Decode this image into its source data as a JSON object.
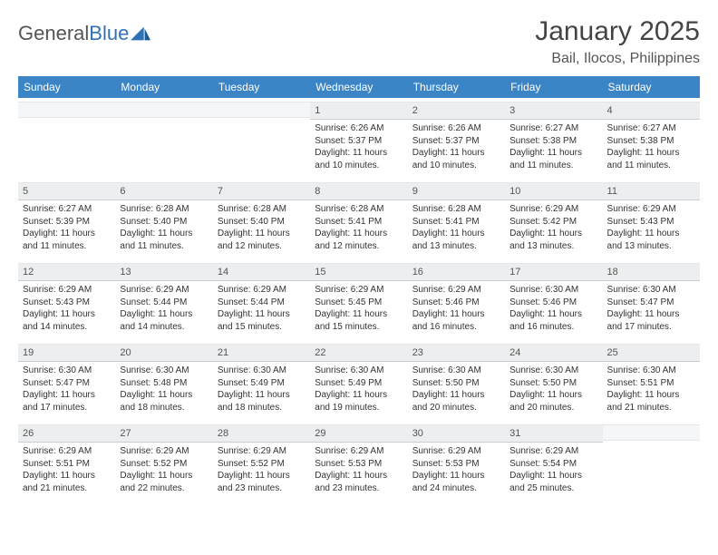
{
  "logo": {
    "text1": "General",
    "text2": "Blue"
  },
  "title": "January 2025",
  "subtitle": "Bail, Ilocos, Philippines",
  "colors": {
    "header_bg": "#3b85c6",
    "header_text": "#ffffff",
    "daynum_bg": "#eceeef",
    "body_text": "#333333",
    "logo_gray": "#555555",
    "logo_blue": "#2f72b8"
  },
  "day_headers": [
    "Sunday",
    "Monday",
    "Tuesday",
    "Wednesday",
    "Thursday",
    "Friday",
    "Saturday"
  ],
  "weeks": [
    [
      {
        "n": "",
        "sr": "",
        "ss": "",
        "dl1": "",
        "dl2": ""
      },
      {
        "n": "",
        "sr": "",
        "ss": "",
        "dl1": "",
        "dl2": ""
      },
      {
        "n": "",
        "sr": "",
        "ss": "",
        "dl1": "",
        "dl2": ""
      },
      {
        "n": "1",
        "sr": "Sunrise: 6:26 AM",
        "ss": "Sunset: 5:37 PM",
        "dl1": "Daylight: 11 hours",
        "dl2": "and 10 minutes."
      },
      {
        "n": "2",
        "sr": "Sunrise: 6:26 AM",
        "ss": "Sunset: 5:37 PM",
        "dl1": "Daylight: 11 hours",
        "dl2": "and 10 minutes."
      },
      {
        "n": "3",
        "sr": "Sunrise: 6:27 AM",
        "ss": "Sunset: 5:38 PM",
        "dl1": "Daylight: 11 hours",
        "dl2": "and 11 minutes."
      },
      {
        "n": "4",
        "sr": "Sunrise: 6:27 AM",
        "ss": "Sunset: 5:38 PM",
        "dl1": "Daylight: 11 hours",
        "dl2": "and 11 minutes."
      }
    ],
    [
      {
        "n": "5",
        "sr": "Sunrise: 6:27 AM",
        "ss": "Sunset: 5:39 PM",
        "dl1": "Daylight: 11 hours",
        "dl2": "and 11 minutes."
      },
      {
        "n": "6",
        "sr": "Sunrise: 6:28 AM",
        "ss": "Sunset: 5:40 PM",
        "dl1": "Daylight: 11 hours",
        "dl2": "and 11 minutes."
      },
      {
        "n": "7",
        "sr": "Sunrise: 6:28 AM",
        "ss": "Sunset: 5:40 PM",
        "dl1": "Daylight: 11 hours",
        "dl2": "and 12 minutes."
      },
      {
        "n": "8",
        "sr": "Sunrise: 6:28 AM",
        "ss": "Sunset: 5:41 PM",
        "dl1": "Daylight: 11 hours",
        "dl2": "and 12 minutes."
      },
      {
        "n": "9",
        "sr": "Sunrise: 6:28 AM",
        "ss": "Sunset: 5:41 PM",
        "dl1": "Daylight: 11 hours",
        "dl2": "and 13 minutes."
      },
      {
        "n": "10",
        "sr": "Sunrise: 6:29 AM",
        "ss": "Sunset: 5:42 PM",
        "dl1": "Daylight: 11 hours",
        "dl2": "and 13 minutes."
      },
      {
        "n": "11",
        "sr": "Sunrise: 6:29 AM",
        "ss": "Sunset: 5:43 PM",
        "dl1": "Daylight: 11 hours",
        "dl2": "and 13 minutes."
      }
    ],
    [
      {
        "n": "12",
        "sr": "Sunrise: 6:29 AM",
        "ss": "Sunset: 5:43 PM",
        "dl1": "Daylight: 11 hours",
        "dl2": "and 14 minutes."
      },
      {
        "n": "13",
        "sr": "Sunrise: 6:29 AM",
        "ss": "Sunset: 5:44 PM",
        "dl1": "Daylight: 11 hours",
        "dl2": "and 14 minutes."
      },
      {
        "n": "14",
        "sr": "Sunrise: 6:29 AM",
        "ss": "Sunset: 5:44 PM",
        "dl1": "Daylight: 11 hours",
        "dl2": "and 15 minutes."
      },
      {
        "n": "15",
        "sr": "Sunrise: 6:29 AM",
        "ss": "Sunset: 5:45 PM",
        "dl1": "Daylight: 11 hours",
        "dl2": "and 15 minutes."
      },
      {
        "n": "16",
        "sr": "Sunrise: 6:29 AM",
        "ss": "Sunset: 5:46 PM",
        "dl1": "Daylight: 11 hours",
        "dl2": "and 16 minutes."
      },
      {
        "n": "17",
        "sr": "Sunrise: 6:30 AM",
        "ss": "Sunset: 5:46 PM",
        "dl1": "Daylight: 11 hours",
        "dl2": "and 16 minutes."
      },
      {
        "n": "18",
        "sr": "Sunrise: 6:30 AM",
        "ss": "Sunset: 5:47 PM",
        "dl1": "Daylight: 11 hours",
        "dl2": "and 17 minutes."
      }
    ],
    [
      {
        "n": "19",
        "sr": "Sunrise: 6:30 AM",
        "ss": "Sunset: 5:47 PM",
        "dl1": "Daylight: 11 hours",
        "dl2": "and 17 minutes."
      },
      {
        "n": "20",
        "sr": "Sunrise: 6:30 AM",
        "ss": "Sunset: 5:48 PM",
        "dl1": "Daylight: 11 hours",
        "dl2": "and 18 minutes."
      },
      {
        "n": "21",
        "sr": "Sunrise: 6:30 AM",
        "ss": "Sunset: 5:49 PM",
        "dl1": "Daylight: 11 hours",
        "dl2": "and 18 minutes."
      },
      {
        "n": "22",
        "sr": "Sunrise: 6:30 AM",
        "ss": "Sunset: 5:49 PM",
        "dl1": "Daylight: 11 hours",
        "dl2": "and 19 minutes."
      },
      {
        "n": "23",
        "sr": "Sunrise: 6:30 AM",
        "ss": "Sunset: 5:50 PM",
        "dl1": "Daylight: 11 hours",
        "dl2": "and 20 minutes."
      },
      {
        "n": "24",
        "sr": "Sunrise: 6:30 AM",
        "ss": "Sunset: 5:50 PM",
        "dl1": "Daylight: 11 hours",
        "dl2": "and 20 minutes."
      },
      {
        "n": "25",
        "sr": "Sunrise: 6:30 AM",
        "ss": "Sunset: 5:51 PM",
        "dl1": "Daylight: 11 hours",
        "dl2": "and 21 minutes."
      }
    ],
    [
      {
        "n": "26",
        "sr": "Sunrise: 6:29 AM",
        "ss": "Sunset: 5:51 PM",
        "dl1": "Daylight: 11 hours",
        "dl2": "and 21 minutes."
      },
      {
        "n": "27",
        "sr": "Sunrise: 6:29 AM",
        "ss": "Sunset: 5:52 PM",
        "dl1": "Daylight: 11 hours",
        "dl2": "and 22 minutes."
      },
      {
        "n": "28",
        "sr": "Sunrise: 6:29 AM",
        "ss": "Sunset: 5:52 PM",
        "dl1": "Daylight: 11 hours",
        "dl2": "and 23 minutes."
      },
      {
        "n": "29",
        "sr": "Sunrise: 6:29 AM",
        "ss": "Sunset: 5:53 PM",
        "dl1": "Daylight: 11 hours",
        "dl2": "and 23 minutes."
      },
      {
        "n": "30",
        "sr": "Sunrise: 6:29 AM",
        "ss": "Sunset: 5:53 PM",
        "dl1": "Daylight: 11 hours",
        "dl2": "and 24 minutes."
      },
      {
        "n": "31",
        "sr": "Sunrise: 6:29 AM",
        "ss": "Sunset: 5:54 PM",
        "dl1": "Daylight: 11 hours",
        "dl2": "and 25 minutes."
      },
      {
        "n": "",
        "sr": "",
        "ss": "",
        "dl1": "",
        "dl2": ""
      }
    ]
  ]
}
